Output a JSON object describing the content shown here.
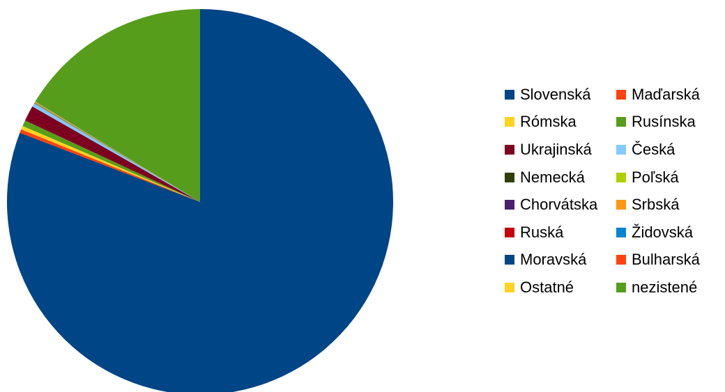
{
  "chart_data": {
    "type": "pie",
    "slices": [
      {
        "label": "Slovenská",
        "value": 80.9,
        "color": "#004586"
      },
      {
        "label": "Maďarská",
        "value": 0.3,
        "color": "#ff420e"
      },
      {
        "label": "Rómska",
        "value": 0.3,
        "color": "#ffd320"
      },
      {
        "label": "Rusínska",
        "value": 0.5,
        "color": "#579d1c"
      },
      {
        "label": "Ukrajinská",
        "value": 1.3,
        "color": "#7e0021"
      },
      {
        "label": "Česká",
        "value": 0.3,
        "color": "#83caff"
      },
      {
        "label": "Nemecká",
        "value": 0.03,
        "color": "#314004"
      },
      {
        "label": "Poľská",
        "value": 0.03,
        "color": "#aecf00"
      },
      {
        "label": "Chorvátska",
        "value": 0.01,
        "color": "#4b1f6f"
      },
      {
        "label": "Srbská",
        "value": 0.01,
        "color": "#ff950e"
      },
      {
        "label": "Ruská",
        "value": 0.02,
        "color": "#c5000b"
      },
      {
        "label": "Židovská",
        "value": 0.01,
        "color": "#0084d1"
      },
      {
        "label": "Moravská",
        "value": 0.01,
        "color": "#004586"
      },
      {
        "label": "Bulharská",
        "value": 0.01,
        "color": "#ff420e"
      },
      {
        "label": "Ostatné",
        "value": 0.04,
        "color": "#ffd320"
      },
      {
        "label": "nezistené",
        "value": 16.3,
        "color": "#579d1c"
      }
    ],
    "legend_position": "right"
  }
}
